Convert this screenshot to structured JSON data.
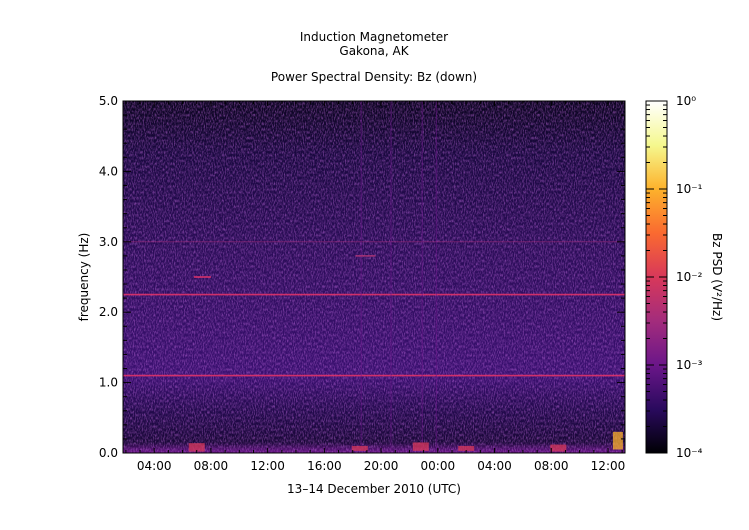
{
  "header": {
    "title_line1": "Induction Magnetometer",
    "title_line2": "Gakona, AK",
    "subtitle": "Power Spectral Density: Bz (down)"
  },
  "chart_data": {
    "type": "heatmap",
    "title": "Induction Magnetometer Gakona, AK",
    "subtitle": "Power Spectral Density: Bz (down)",
    "xlabel": "13–14 December 2010 (UTC)",
    "ylabel": "frequency (Hz)",
    "x_tick_labels": [
      "04:00",
      "08:00",
      "12:00",
      "16:00",
      "20:00",
      "00:00",
      "04:00",
      "08:00",
      "12:00"
    ],
    "x_tick_hours": [
      4,
      8,
      12,
      16,
      20,
      24,
      28,
      32,
      36
    ],
    "xlim_hours": [
      1.8,
      37.2
    ],
    "y_tick_labels": [
      "0.0",
      "1.0",
      "2.0",
      "3.0",
      "4.0",
      "5.0"
    ],
    "ylim": [
      0.0,
      5.0
    ],
    "colorbar": {
      "label": "Bz PSD (V²/Hz)",
      "scale": "log",
      "range": [
        0.0001,
        1
      ],
      "tick_labels": [
        "10⁻⁴",
        "10⁻³",
        "10⁻²",
        "10⁻¹",
        "10⁰"
      ],
      "colormap": [
        "#000004",
        "#2a0a5e",
        "#6b1689",
        "#a32c7c",
        "#d8385a",
        "#fa6a30",
        "#fdb22c",
        "#f5f88e",
        "#ffffff"
      ]
    },
    "features": [
      {
        "name": "persistent line",
        "frequency_hz": 1.1
      },
      {
        "name": "persistent line",
        "frequency_hz": 2.25
      },
      {
        "name": "faint line",
        "frequency_hz": 3.0
      }
    ]
  }
}
